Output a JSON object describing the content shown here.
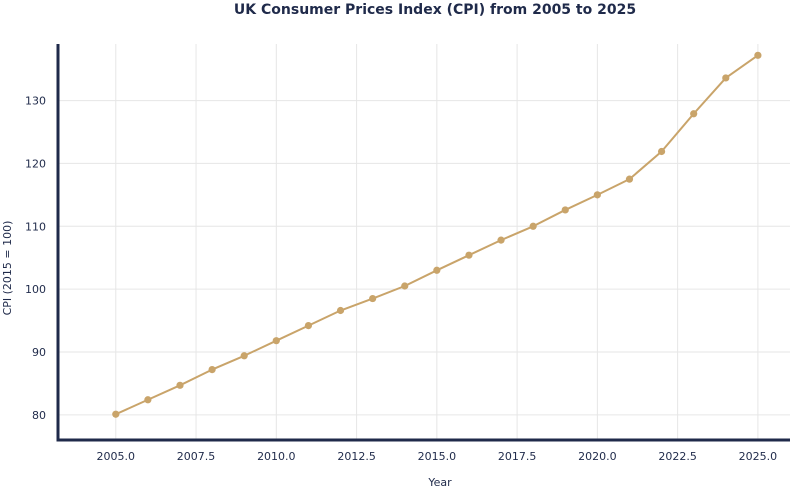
{
  "chart_data": {
    "type": "line",
    "title": "UK Consumer Prices Index (CPI) from 2005 to 2025",
    "xlabel": "Year",
    "ylabel": "CPI (2015 = 100)",
    "xlim": [
      2003.2,
      2026.0
    ],
    "ylim": [
      76,
      139
    ],
    "xticks": [
      2005.0,
      2007.5,
      2010.0,
      2012.5,
      2015.0,
      2017.5,
      2020.0,
      2022.5,
      2025.0
    ],
    "xtick_labels": [
      "2005.0",
      "2007.5",
      "2010.0",
      "2012.5",
      "2015.0",
      "2017.5",
      "2020.0",
      "2022.5",
      "2025.0"
    ],
    "yticks": [
      80,
      90,
      100,
      110,
      120,
      130
    ],
    "ytick_labels": [
      "80",
      "90",
      "100",
      "110",
      "120",
      "130"
    ],
    "grid": true,
    "series": [
      {
        "name": "CPI",
        "color": "#c9a46a",
        "x": [
          2005,
          2006,
          2007,
          2008,
          2009,
          2010,
          2011,
          2012,
          2013,
          2014,
          2015,
          2016,
          2017,
          2018,
          2019,
          2020,
          2021,
          2022,
          2023,
          2024,
          2025
        ],
        "values": [
          80.1,
          82.4,
          84.7,
          87.2,
          89.4,
          91.8,
          94.2,
          96.6,
          98.5,
          100.5,
          103.0,
          105.4,
          107.8,
          110.0,
          112.6,
          115.0,
          117.5,
          121.9,
          127.9,
          133.6,
          137.2
        ]
      }
    ]
  },
  "colors": {
    "axis": "#1f2a4a",
    "grid": "#e6e6e6",
    "line": "#c9a46a"
  }
}
